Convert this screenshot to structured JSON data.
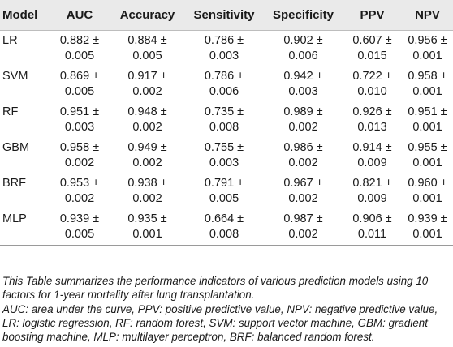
{
  "table": {
    "headers": [
      "Model",
      "AUC",
      "Accuracy",
      "Sensitivity",
      "Specificity",
      "PPV",
      "NPV"
    ],
    "rows": [
      {
        "model": "LR",
        "values": [
          [
            "0.882 ±",
            "0.005"
          ],
          [
            "0.884 ±",
            "0.005"
          ],
          [
            "0.786 ±",
            "0.003"
          ],
          [
            "0.902 ±",
            "0.006"
          ],
          [
            "0.607 ±",
            "0.015"
          ],
          [
            "0.956 ±",
            "0.001"
          ]
        ]
      },
      {
        "model": "SVM",
        "values": [
          [
            "0.869 ±",
            "0.005"
          ],
          [
            "0.917 ±",
            "0.002"
          ],
          [
            "0.786 ±",
            "0.006"
          ],
          [
            "0.942 ±",
            "0.003"
          ],
          [
            "0.722 ±",
            "0.010"
          ],
          [
            "0.958 ±",
            "0.001"
          ]
        ]
      },
      {
        "model": "RF",
        "values": [
          [
            "0.951 ±",
            "0.003"
          ],
          [
            "0.948 ±",
            "0.002"
          ],
          [
            "0.735 ±",
            "0.008"
          ],
          [
            "0.989 ±",
            "0.002"
          ],
          [
            "0.926 ±",
            "0.013"
          ],
          [
            "0.951 ±",
            "0.001"
          ]
        ]
      },
      {
        "model": "GBM",
        "values": [
          [
            "0.958 ±",
            "0.002"
          ],
          [
            "0.949 ±",
            "0.002"
          ],
          [
            "0.755 ±",
            "0.003"
          ],
          [
            "0.986 ±",
            "0.002"
          ],
          [
            "0.914 ±",
            "0.009"
          ],
          [
            "0.955 ±",
            "0.001"
          ]
        ]
      },
      {
        "model": "BRF",
        "values": [
          [
            "0.953 ±",
            "0.002"
          ],
          [
            "0.938 ±",
            "0.002"
          ],
          [
            "0.791 ±",
            "0.005"
          ],
          [
            "0.967 ±",
            "0.002"
          ],
          [
            "0.821 ±",
            "0.009"
          ],
          [
            "0.960 ±",
            "0.001"
          ]
        ]
      },
      {
        "model": "MLP",
        "values": [
          [
            "0.939 ±",
            "0.005"
          ],
          [
            "0.935 ±",
            "0.001"
          ],
          [
            "0.664 ±",
            "0.008"
          ],
          [
            "0.987 ±",
            "0.002"
          ],
          [
            "0.906 ±",
            "0.011"
          ],
          [
            "0.939 ±",
            "0.001"
          ]
        ]
      }
    ]
  },
  "footnotes": {
    "summary": "This Table summarizes the performance indicators of various prediction models using 10 factors for 1-year mortality after lung transplantation.",
    "abbreviations": "AUC: area under the curve, PPV: positive predictive value, NPV: negative predictive value, LR: logistic regression, RF: random forest, SVM: support vector machine, GBM: gradient boosting machine, MLP: multilayer perceptron, BRF: balanced random forest."
  }
}
